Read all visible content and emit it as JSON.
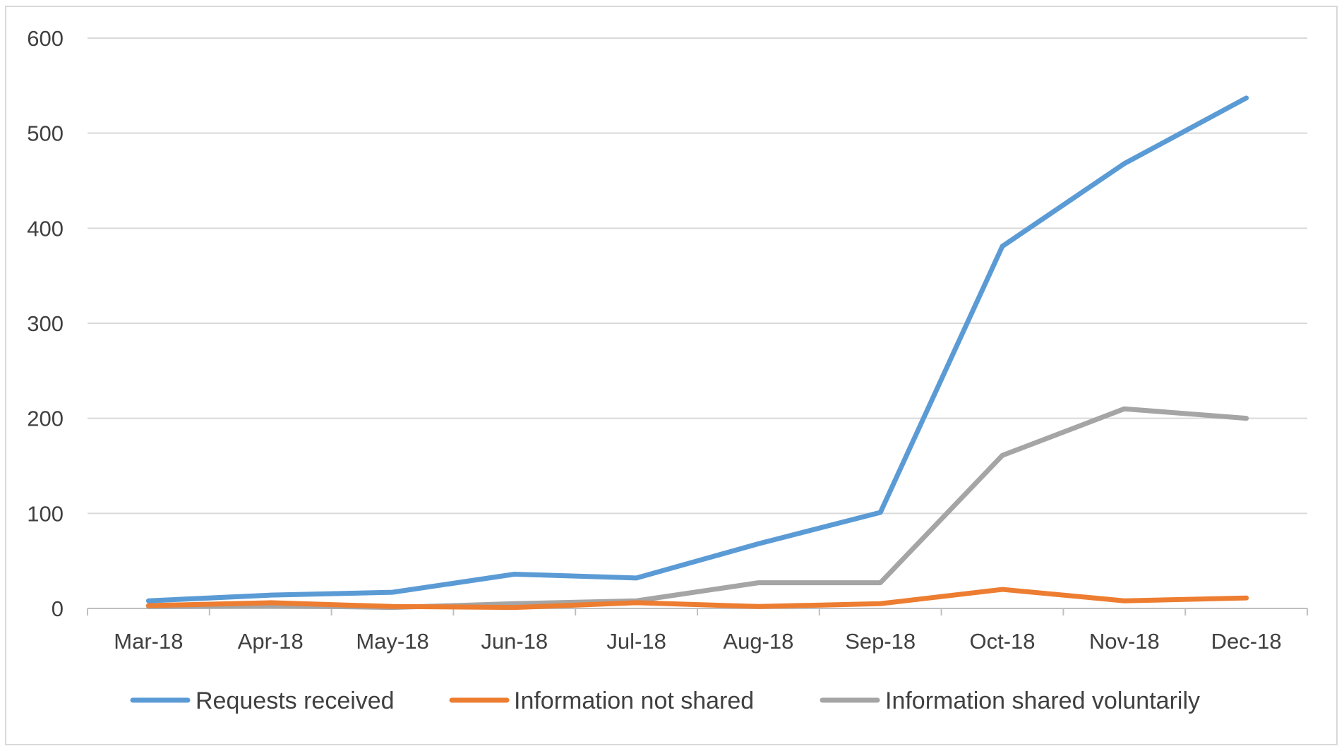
{
  "chart_data": {
    "type": "line",
    "title": "",
    "xlabel": "",
    "ylabel": "",
    "categories": [
      "Mar-18",
      "Apr-18",
      "May-18",
      "Jun-18",
      "Jul-18",
      "Aug-18",
      "Sep-18",
      "Oct-18",
      "Nov-18",
      "Dec-18"
    ],
    "ylim": [
      0,
      600
    ],
    "yticks": [
      0,
      100,
      200,
      300,
      400,
      500,
      600
    ],
    "grid": true,
    "legend_position": "bottom",
    "series": [
      {
        "name": "Requests received",
        "color": "#5b9bd5",
        "values": [
          8,
          14,
          17,
          36,
          32,
          68,
          101,
          381,
          468,
          537
        ]
      },
      {
        "name": "Information not shared",
        "color": "#ed7d31",
        "values": [
          3,
          6,
          2,
          1,
          6,
          2,
          5,
          20,
          8,
          11
        ]
      },
      {
        "name": "Information shared voluntarily",
        "color": "#a5a5a5",
        "values": [
          2,
          3,
          1,
          5,
          8,
          27,
          27,
          161,
          210,
          200
        ]
      }
    ]
  }
}
